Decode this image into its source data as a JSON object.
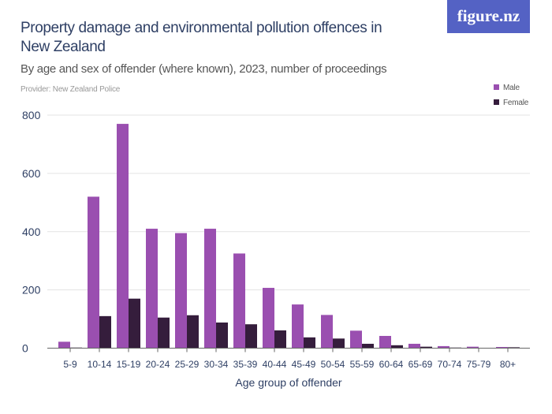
{
  "title": "Property damage and environmental pollution offences in New Zealand",
  "subtitle": "By age and sex of offender (where known), 2023, number of proceedings",
  "provider": "Provider: New Zealand Police",
  "logo": "figure.nz",
  "colors": {
    "male": "#9a4fb0",
    "female": "#351d3c"
  },
  "chart_data": {
    "type": "bar",
    "xlabel": "Age group of offender",
    "ylabel": "",
    "ylim": [
      0,
      800
    ],
    "yticks": [
      0,
      200,
      400,
      600,
      800
    ],
    "grid": true,
    "legend": "top-right",
    "categories": [
      "5-9",
      "10-14",
      "15-19",
      "20-24",
      "25-29",
      "30-34",
      "35-39",
      "40-44",
      "45-49",
      "50-54",
      "55-59",
      "60-64",
      "65-69",
      "70-74",
      "75-79",
      "80+"
    ],
    "series": [
      {
        "name": "Male",
        "values": [
          22,
          520,
          770,
          410,
          395,
          410,
          325,
          207,
          150,
          114,
          60,
          42,
          15,
          7,
          5,
          4
        ]
      },
      {
        "name": "Female",
        "values": [
          2,
          110,
          170,
          105,
          113,
          88,
          82,
          61,
          37,
          33,
          15,
          10,
          5,
          2,
          0,
          3
        ]
      }
    ]
  }
}
